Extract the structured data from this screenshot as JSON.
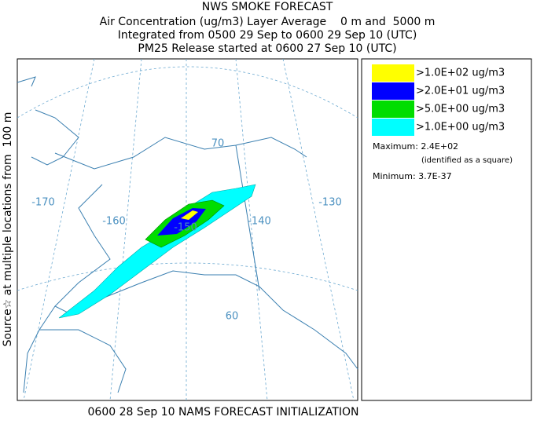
{
  "header": {
    "lines": [
      "NWS SMOKE FORECAST",
      "Air Concentration (ug/m3) Layer Average    0 m and  5000 m",
      "Integrated from 0500 29 Sep to 0600 29 Sep 10 (UTC)",
      "PM25 Release started at 0600 27 Sep 10 (UTC)"
    ]
  },
  "side_label": "Source☆ at multiple locations from  100 m",
  "footer": "0600 28 Sep 10 NAMS FORECAST INITIALIZATION",
  "legend": {
    "entries": [
      {
        "label": ">1.0E+02 ug/m3",
        "color": "#ffff00"
      },
      {
        "label": ">2.0E+01 ug/m3",
        "color": "#0000ff"
      },
      {
        "label": ">5.0E+00 ug/m3",
        "color": "#00dd00"
      },
      {
        "label": ">1.0E+00 ug/m3",
        "color": "#00ffff"
      }
    ],
    "maximum": "Maximum: 2.4E+02",
    "maximum_note": "(identified as a square)",
    "minimum": "Minimum: 3.7E-37"
  },
  "map": {
    "labels": [
      "-170",
      "-160",
      "-150",
      "-140",
      "-130",
      "70",
      "60"
    ]
  }
}
